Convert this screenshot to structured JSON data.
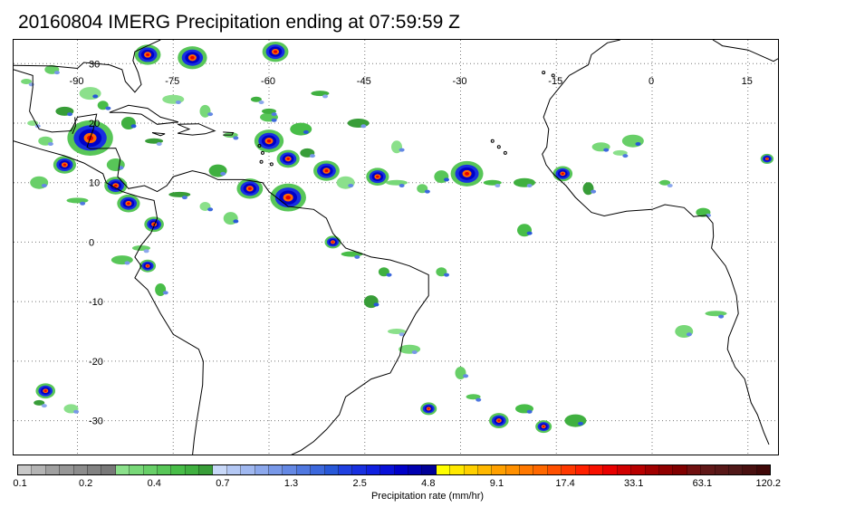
{
  "title": "20160804 IMERG Precipitation ending at 07:59:59 Z",
  "map": {
    "lon_range": [
      -100,
      20
    ],
    "lat_range": [
      -36,
      34
    ],
    "longitude_labels": [
      "-90",
      "-75",
      "-60",
      "-45",
      "-30",
      "-15",
      "0",
      "15"
    ],
    "latitude_labels": [
      "30",
      "20",
      "10",
      "0",
      "-10",
      "-20",
      "-30"
    ],
    "gridlines": "dotted"
  },
  "colorbar": {
    "colors": [
      "#c8c8c8",
      "#b4b4b4",
      "#a0a0a0",
      "#969696",
      "#8c8c8c",
      "#828282",
      "#787878",
      "#8be08b",
      "#78d878",
      "#68cf68",
      "#58c658",
      "#48bd48",
      "#40b040",
      "#389d38",
      "#c8d8f8",
      "#b4c8f4",
      "#a0b8f0",
      "#8ca8ec",
      "#7898e8",
      "#6488e4",
      "#5078e0",
      "#3c68dc",
      "#2858d8",
      "#2040e0",
      "#1830e0",
      "#1020e0",
      "#0810d8",
      "#0000c8",
      "#0000b0",
      "#000098",
      "#ffff00",
      "#ffe800",
      "#ffd000",
      "#ffb800",
      "#ffa000",
      "#ff9000",
      "#ff7800",
      "#ff6800",
      "#ff5000",
      "#ff3800",
      "#ff2000",
      "#f81000",
      "#e80000",
      "#d00000",
      "#b80000",
      "#a00000",
      "#900000",
      "#800000",
      "#701010",
      "#601818",
      "#581818",
      "#501818",
      "#481010",
      "#400808"
    ],
    "tick_labels": [
      "0.1",
      "0.2",
      "0.4",
      "0.7",
      "1.3",
      "2.5",
      "4.8",
      "9.1",
      "17.4",
      "33.1",
      "63.1",
      "120.2"
    ],
    "label": "Precipitation rate (mm/hr)"
  }
}
